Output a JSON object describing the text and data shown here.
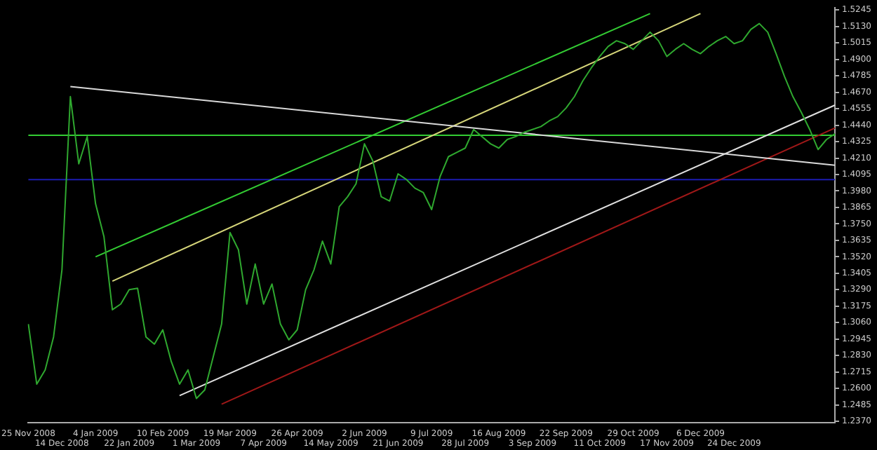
{
  "chart_data": {
    "type": "line",
    "categories": [
      "25 Nov 2008",
      null,
      null,
      null,
      "14 Dec 2008",
      null,
      null,
      null,
      "4 Jan 2009",
      null,
      null,
      null,
      "22 Jan 2009",
      null,
      null,
      null,
      "10 Feb 2009",
      null,
      null,
      null,
      "1 Mar 2009",
      null,
      null,
      null,
      "19 Mar 2009",
      null,
      null,
      null,
      "7 Apr 2009",
      null,
      null,
      null,
      "26 Apr 2009",
      null,
      null,
      null,
      "14 May 2009",
      null,
      null,
      null,
      "2 Jun 2009",
      null,
      null,
      null,
      "21 Jun 2009",
      null,
      null,
      null,
      "9 Jul 2009",
      null,
      null,
      null,
      "28 Jul 2009",
      null,
      null,
      null,
      "16 Aug 2009",
      null,
      null,
      null,
      "3 Sep 2009",
      null,
      null,
      null,
      "22 Sep 2009",
      null,
      null,
      null,
      "11 Oct 2009",
      null,
      null,
      null,
      "29 Oct 2009",
      null,
      null,
      null,
      "17 Nov 2009",
      null,
      null,
      null,
      "6 Dec 2009",
      null,
      null,
      null,
      "24 Dec 2009",
      null,
      null,
      null,
      null,
      null,
      null,
      null,
      null,
      null,
      null,
      null,
      null
    ],
    "series": [
      {
        "color": "#2fa82f",
        "values": [
          1.305,
          1.263,
          1.273,
          1.296,
          1.343,
          1.464,
          1.417,
          1.436,
          1.389,
          1.366,
          1.315,
          1.319,
          1.329,
          1.33,
          1.296,
          1.291,
          1.301,
          1.279,
          1.263,
          1.273,
          1.253,
          1.259,
          1.282,
          1.305,
          1.369,
          1.357,
          1.319,
          1.347,
          1.319,
          1.333,
          1.305,
          1.294,
          1.301,
          1.329,
          1.343,
          1.363,
          1.347,
          1.387,
          1.394,
          1.403,
          1.431,
          1.419,
          1.394,
          1.391,
          1.41,
          1.406,
          1.4,
          1.397,
          1.385,
          1.408,
          1.422,
          1.425,
          1.428,
          1.441,
          1.436,
          1.431,
          1.428,
          1.434,
          1.436,
          1.439,
          1.441,
          1.443,
          1.447,
          1.45,
          1.456,
          1.464,
          1.475,
          1.484,
          1.492,
          1.499,
          1.503,
          1.501,
          1.497,
          1.503,
          1.509,
          1.503,
          1.492,
          1.497,
          1.501,
          1.497,
          1.494,
          1.499,
          1.503,
          1.506,
          1.501,
          1.503,
          1.511,
          1.515,
          1.509,
          1.494,
          1.478,
          1.464,
          1.453,
          1.441,
          1.427,
          1.434,
          1.438
        ]
      },
      {
        "color": "#d9d9d9",
        "values": [
          null,
          null,
          null,
          null,
          null,
          1.471,
          null,
          null,
          null,
          null,
          null,
          null,
          null,
          null,
          null,
          null,
          null,
          null,
          null,
          null,
          null,
          null,
          null,
          null,
          null,
          null,
          null,
          null,
          null,
          null,
          null,
          null,
          null,
          null,
          null,
          null,
          null,
          null,
          null,
          null,
          null,
          null,
          null,
          null,
          null,
          null,
          null,
          null,
          null,
          null,
          null,
          null,
          null,
          null,
          null,
          null,
          null,
          null,
          null,
          null,
          null,
          null,
          null,
          null,
          null,
          null,
          null,
          null,
          null,
          null,
          null,
          null,
          null,
          null,
          null,
          null,
          null,
          null,
          null,
          null,
          null,
          null,
          null,
          null,
          null,
          null,
          null,
          null,
          null,
          null,
          null,
          null,
          null,
          null,
          null,
          null,
          1.416
        ]
      },
      {
        "color": "#33cc33",
        "values": [
          null,
          null,
          null,
          null,
          null,
          null,
          null,
          null,
          1.352,
          null,
          null,
          null,
          null,
          null,
          null,
          null,
          null,
          null,
          null,
          null,
          null,
          null,
          null,
          null,
          null,
          null,
          null,
          null,
          null,
          null,
          null,
          null,
          null,
          null,
          null,
          null,
          null,
          null,
          null,
          null,
          null,
          null,
          null,
          null,
          null,
          null,
          null,
          null,
          null,
          null,
          null,
          null,
          null,
          null,
          null,
          null,
          null,
          null,
          null,
          null,
          null,
          null,
          null,
          null,
          null,
          null,
          null,
          null,
          null,
          null,
          null,
          null,
          null,
          null,
          1.522,
          null,
          null,
          null,
          null,
          null,
          null,
          null,
          null,
          null,
          null,
          null,
          null,
          null,
          null,
          null,
          null,
          null,
          null,
          null,
          null,
          null,
          null
        ]
      },
      {
        "color": "#d6d67a",
        "values": [
          null,
          null,
          null,
          null,
          null,
          null,
          null,
          null,
          null,
          null,
          1.335,
          null,
          null,
          null,
          null,
          null,
          null,
          null,
          null,
          null,
          null,
          null,
          null,
          null,
          null,
          null,
          null,
          null,
          null,
          null,
          null,
          null,
          null,
          null,
          null,
          null,
          null,
          null,
          null,
          null,
          null,
          null,
          null,
          null,
          null,
          null,
          null,
          null,
          null,
          null,
          null,
          null,
          null,
          null,
          null,
          null,
          null,
          null,
          null,
          null,
          null,
          null,
          null,
          null,
          null,
          null,
          null,
          null,
          null,
          null,
          null,
          null,
          null,
          null,
          null,
          null,
          null,
          null,
          null,
          null,
          1.522,
          null,
          null,
          null,
          null,
          null,
          null,
          null,
          null,
          null,
          null,
          null,
          null,
          null,
          null,
          null,
          null
        ]
      },
      {
        "color": "#e0e0e0",
        "values": [
          null,
          null,
          null,
          null,
          null,
          null,
          null,
          null,
          null,
          null,
          null,
          null,
          null,
          null,
          null,
          null,
          null,
          null,
          1.255,
          null,
          null,
          null,
          null,
          null,
          null,
          null,
          null,
          null,
          null,
          null,
          null,
          null,
          null,
          null,
          null,
          null,
          null,
          null,
          null,
          null,
          null,
          null,
          null,
          null,
          null,
          null,
          null,
          null,
          null,
          null,
          null,
          null,
          null,
          null,
          null,
          null,
          null,
          null,
          null,
          null,
          null,
          null,
          null,
          null,
          null,
          null,
          null,
          null,
          null,
          null,
          null,
          null,
          null,
          null,
          null,
          null,
          null,
          null,
          null,
          null,
          null,
          null,
          null,
          null,
          null,
          null,
          null,
          null,
          null,
          null,
          null,
          null,
          null,
          null,
          null,
          null,
          1.458
        ]
      },
      {
        "color": "#a01818",
        "values": [
          null,
          null,
          null,
          null,
          null,
          null,
          null,
          null,
          null,
          null,
          null,
          null,
          null,
          null,
          null,
          null,
          null,
          null,
          null,
          null,
          null,
          null,
          null,
          1.249,
          null,
          null,
          null,
          null,
          null,
          null,
          null,
          null,
          null,
          null,
          null,
          null,
          null,
          null,
          null,
          null,
          null,
          null,
          null,
          null,
          null,
          null,
          null,
          null,
          null,
          null,
          null,
          null,
          null,
          null,
          null,
          null,
          null,
          null,
          null,
          null,
          null,
          null,
          null,
          null,
          null,
          null,
          null,
          null,
          null,
          null,
          null,
          null,
          null,
          null,
          null,
          null,
          null,
          null,
          null,
          null,
          null,
          null,
          null,
          null,
          null,
          null,
          null,
          null,
          null,
          null,
          null,
          null,
          null,
          null,
          null,
          null,
          1.442
        ]
      }
    ],
    "ylim": [
      1.236,
      1.526
    ],
    "yticks": [
      1.5245,
      {
        "value": 1.513,
        "label": "1.5130"
      },
      1.5015,
      {
        "value": 1.49,
        "label": "1.4900"
      },
      1.4785,
      {
        "value": 1.467,
        "label": "1.4670"
      },
      1.4555,
      {
        "value": 1.444,
        "label": "1.4440"
      },
      1.4325,
      {
        "value": 1.421,
        "label": "1.4210"
      },
      1.4095,
      {
        "value": 1.398,
        "label": "1.3980"
      },
      1.3865,
      {
        "value": 1.375,
        "label": "1.3750"
      },
      1.3635,
      {
        "value": 1.352,
        "label": "1.3520"
      },
      1.3405,
      {
        "value": 1.329,
        "label": "1.3290"
      },
      1.3175,
      {
        "value": 1.306,
        "label": "1.3060"
      },
      1.2945,
      {
        "value": 1.283,
        "label": "1.2830"
      },
      1.2715,
      {
        "value": 1.26,
        "label": "1.2600"
      },
      1.2485,
      {
        "value": 1.237,
        "label": "1.2370"
      }
    ],
    "ref_lines": [
      {
        "axis": "y",
        "value": 1.437,
        "color": "#33cc33"
      },
      {
        "axis": "y",
        "value": 1.406,
        "color": "#1c1cb0"
      }
    ],
    "marker": "none",
    "line_style": "solid",
    "grid": false,
    "legend": false
  }
}
